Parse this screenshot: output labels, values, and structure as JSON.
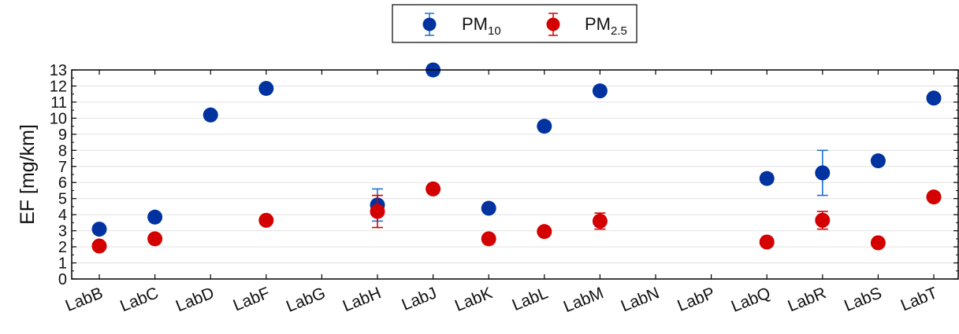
{
  "chart_data": {
    "type": "scatter",
    "ylabel": "EF [mg/km]",
    "xlabel": "",
    "ylim": [
      0,
      13
    ],
    "yticks": [
      0,
      1,
      2,
      3,
      4,
      5,
      6,
      7,
      8,
      9,
      10,
      11,
      12,
      13
    ],
    "grid": "horizontal",
    "legend_position": "top-center",
    "categories": [
      "LabB",
      "LabC",
      "LabD",
      "LabF",
      "LabG",
      "LabH",
      "LabJ",
      "LabK",
      "LabL",
      "LabM",
      "LabN",
      "LabP",
      "LabQ",
      "LabR",
      "LabS",
      "LabT"
    ],
    "series": [
      {
        "name": "PM",
        "name_subscript": "10",
        "color": "#0033a0",
        "error_color": "#1f6fd6",
        "values": [
          3.1,
          3.85,
          10.2,
          11.85,
          null,
          4.6,
          13.0,
          4.4,
          9.5,
          11.7,
          null,
          null,
          6.25,
          6.6,
          7.35,
          11.25
        ],
        "errors": [
          0.15,
          0.15,
          0.15,
          0.15,
          null,
          1.0,
          0.3,
          0.15,
          0.15,
          0.15,
          null,
          null,
          0.3,
          1.4,
          0.15,
          0.3
        ]
      },
      {
        "name": "PM",
        "name_subscript": "2.5",
        "color": "#d40000",
        "error_color": "#d40000",
        "values": [
          2.05,
          2.5,
          null,
          3.65,
          null,
          4.2,
          5.6,
          2.5,
          2.95,
          3.6,
          null,
          null,
          2.3,
          3.65,
          2.25,
          5.1
        ],
        "errors": [
          0.1,
          0.1,
          null,
          0.1,
          null,
          1.0,
          0.15,
          0.1,
          0.1,
          0.5,
          null,
          null,
          0.3,
          0.55,
          0.1,
          0.15
        ]
      }
    ]
  }
}
